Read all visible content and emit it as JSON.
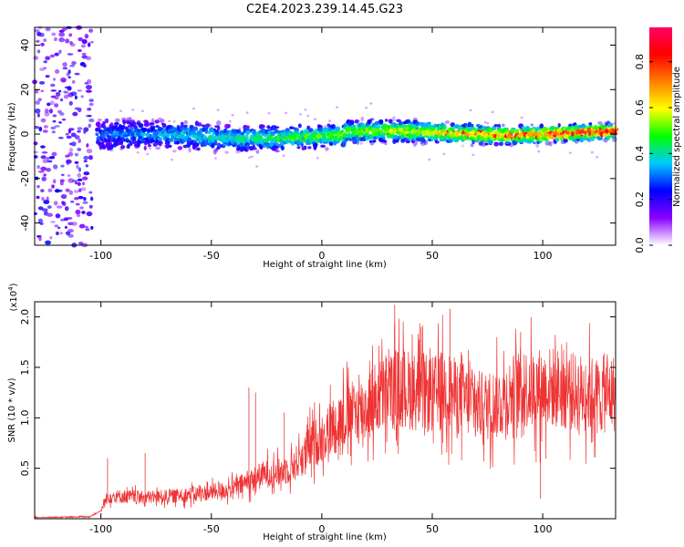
{
  "title": "C2E4.2023.239.14.45.G23",
  "chart_data": [
    {
      "type": "heatmap",
      "title": "C2E4.2023.239.14.45.G23",
      "xlabel": "Height of straight line (km)",
      "ylabel": "Frequency (Hz)",
      "xlim": [
        -130,
        133
      ],
      "ylim": [
        -50,
        48
      ],
      "xticks": [
        -100,
        -50,
        0,
        50,
        100
      ],
      "yticks": [
        -40,
        -20,
        0,
        20,
        40
      ],
      "xtick_labels": [
        "-100",
        "-50",
        "0",
        "50",
        "100"
      ],
      "ytick_labels": [
        "-40",
        "-20",
        "0",
        "20",
        "40"
      ],
      "colorbar": {
        "label": "Normalized spectral amplitude",
        "range": [
          0.0,
          0.95
        ],
        "ticks": [
          0.0,
          0.2,
          0.4,
          0.6,
          0.8
        ],
        "tick_labels": [
          "0.0",
          "0.2",
          "0.4",
          "0.6",
          "0.8"
        ],
        "colors": [
          "#ffffff",
          "#8a00ff",
          "#0000ff",
          "#00c8ff",
          "#00ff00",
          "#ffff00",
          "#ff8000",
          "#ff0000",
          "#ff0066"
        ]
      }
    },
    {
      "type": "line",
      "xlabel": "Height of straight line (km)",
      "ylabel": "SNR (10 * v/v)",
      "y_multiplier": "(x10",
      "y_multiplier_exp": "4",
      "y_multiplier_close": ")",
      "xlim": [
        -130,
        133
      ],
      "ylim": [
        0,
        2.15
      ],
      "xticks": [
        -100,
        -50,
        0,
        50,
        100
      ],
      "yticks": [
        0.5,
        1.0,
        1.5,
        2.0
      ],
      "xtick_labels": [
        "-100",
        "-50",
        "0",
        "50",
        "100"
      ],
      "ytick_labels": [
        "0.5",
        "1.0",
        "1.5",
        "2.0"
      ],
      "color": "#ee3333",
      "envelope": {
        "x": [
          -130,
          -105,
          -100,
          -97,
          -90,
          -80,
          -70,
          -60,
          -50,
          -40,
          -35,
          -30,
          -25,
          -20,
          -15,
          -10,
          -5,
          0,
          5,
          10,
          15,
          20,
          25,
          30,
          35,
          40,
          45,
          50,
          55,
          60,
          65,
          70,
          75,
          80,
          85,
          90,
          95,
          100,
          105,
          110,
          115,
          120,
          125,
          133
        ],
        "y": [
          0.01,
          0.02,
          0.08,
          0.22,
          0.22,
          0.21,
          0.22,
          0.24,
          0.26,
          0.3,
          0.35,
          0.4,
          0.45,
          0.45,
          0.5,
          0.58,
          0.72,
          0.8,
          0.92,
          1.0,
          1.05,
          1.1,
          1.2,
          1.25,
          1.3,
          1.28,
          1.25,
          1.22,
          1.3,
          1.22,
          1.18,
          1.12,
          1.12,
          1.15,
          1.22,
          1.3,
          1.28,
          1.3,
          1.3,
          1.28,
          1.25,
          1.25,
          1.22,
          1.25
        ]
      },
      "spikes": [
        {
          "x": -97,
          "y": 0.6
        },
        {
          "x": -80,
          "y": 0.65
        },
        {
          "x": -33,
          "y": 1.3
        },
        {
          "x": -30,
          "y": 1.25
        },
        {
          "x": -17,
          "y": 1.05
        },
        {
          "x": 33,
          "y": 2.12
        },
        {
          "x": 45,
          "y": 1.9
        },
        {
          "x": 58,
          "y": 2.08
        },
        {
          "x": 90,
          "y": 1.85
        },
        {
          "x": 99,
          "y": 0.2
        }
      ]
    }
  ]
}
